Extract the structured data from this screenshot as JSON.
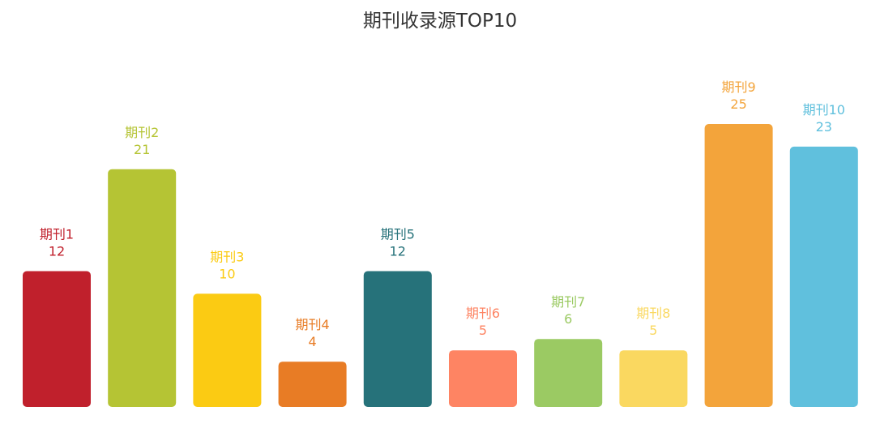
{
  "chart_data": {
    "type": "bar",
    "title": "期刊收录源TOP10",
    "xlabel": "",
    "ylabel": "",
    "ylim": [
      0,
      25
    ],
    "grid": false,
    "legend": "none",
    "categories": [
      "期刊1",
      "期刊2",
      "期刊3",
      "期刊4",
      "期刊5",
      "期刊6",
      "期刊7",
      "期刊8",
      "期刊9",
      "期刊10"
    ],
    "values": [
      12,
      21,
      10,
      4,
      12,
      5,
      6,
      5,
      25,
      23
    ],
    "colors": [
      "#C0202C",
      "#B5C434",
      "#FBCB13",
      "#E87C25",
      "#26727A",
      "#FE8463",
      "#9BCA63",
      "#FAD860",
      "#F3A43B",
      "#60C0DD"
    ]
  }
}
